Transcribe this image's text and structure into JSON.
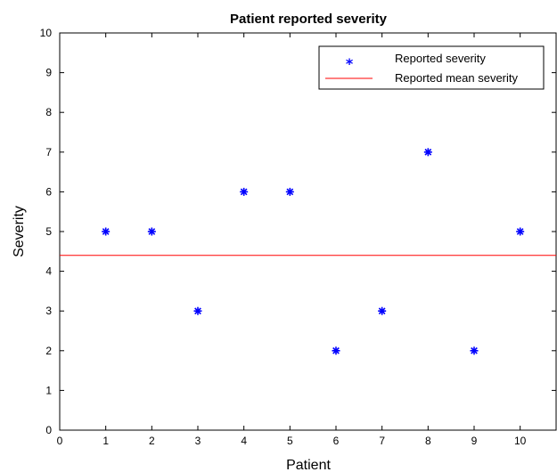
{
  "chart_data": {
    "type": "scatter",
    "title": "Patient reported severity",
    "xlabel": "Patient",
    "ylabel": "Severity",
    "xlim": [
      0,
      10.8
    ],
    "ylim": [
      0,
      10
    ],
    "xticks": [
      0,
      1,
      2,
      3,
      4,
      5,
      6,
      7,
      8,
      9,
      10
    ],
    "yticks": [
      0,
      1,
      2,
      3,
      4,
      5,
      6,
      7,
      8,
      9,
      10
    ],
    "grid": false,
    "legend_position": "top-right",
    "series": [
      {
        "name": "Reported severity",
        "marker": "asterisk",
        "color": "#0000ff",
        "x": [
          1,
          2,
          3,
          4,
          5,
          6,
          7,
          8,
          9,
          10
        ],
        "y": [
          5,
          5,
          3,
          6,
          6,
          2,
          3,
          7,
          2,
          5
        ]
      },
      {
        "name": "Reported mean severity",
        "type": "hline",
        "color": "#ff0000",
        "value": 4.4
      }
    ]
  }
}
